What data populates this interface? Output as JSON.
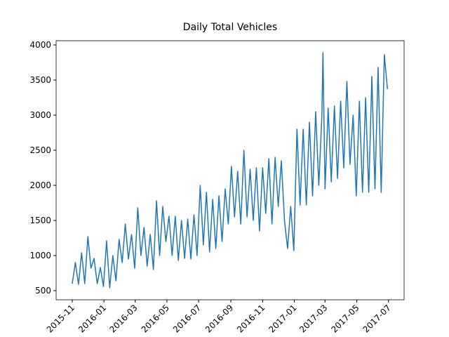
{
  "chart_data": {
    "type": "line",
    "title": "Daily Total Vehicles",
    "color": "#1f77b4",
    "x": [
      "2015-11-01",
      "2015-11-07",
      "2015-11-13",
      "2015-11-19",
      "2015-11-25",
      "2015-12-01",
      "2015-12-07",
      "2015-12-13",
      "2015-12-19",
      "2015-12-25",
      "2015-12-31",
      "2016-01-06",
      "2016-01-12",
      "2016-01-18",
      "2016-01-24",
      "2016-01-30",
      "2016-02-05",
      "2016-02-11",
      "2016-02-17",
      "2016-02-23",
      "2016-02-29",
      "2016-03-06",
      "2016-03-12",
      "2016-03-18",
      "2016-03-24",
      "2016-03-30",
      "2016-04-05",
      "2016-04-11",
      "2016-04-17",
      "2016-04-23",
      "2016-04-29",
      "2016-05-05",
      "2016-05-11",
      "2016-05-17",
      "2016-05-23",
      "2016-05-29",
      "2016-06-04",
      "2016-06-10",
      "2016-06-16",
      "2016-06-22",
      "2016-06-28",
      "2016-07-04",
      "2016-07-10",
      "2016-07-16",
      "2016-07-22",
      "2016-07-28",
      "2016-08-03",
      "2016-08-09",
      "2016-08-15",
      "2016-08-21",
      "2016-08-27",
      "2016-09-02",
      "2016-09-08",
      "2016-09-14",
      "2016-09-20",
      "2016-09-26",
      "2016-10-02",
      "2016-10-08",
      "2016-10-14",
      "2016-10-20",
      "2016-10-26",
      "2016-11-01",
      "2016-11-07",
      "2016-11-13",
      "2016-11-19",
      "2016-11-25",
      "2016-12-01",
      "2016-12-07",
      "2016-12-13",
      "2016-12-19",
      "2016-12-25",
      "2016-12-31",
      "2017-01-06",
      "2017-01-12",
      "2017-01-18",
      "2017-01-24",
      "2017-01-30",
      "2017-02-05",
      "2017-02-11",
      "2017-02-17",
      "2017-02-23",
      "2017-02-25",
      "2017-03-01",
      "2017-03-07",
      "2017-03-13",
      "2017-03-19",
      "2017-03-25",
      "2017-03-31",
      "2017-04-06",
      "2017-04-12",
      "2017-04-18",
      "2017-04-24",
      "2017-04-30",
      "2017-05-06",
      "2017-05-12",
      "2017-05-18",
      "2017-05-24",
      "2017-05-30",
      "2017-06-05",
      "2017-06-11",
      "2017-06-17",
      "2017-06-23",
      "2017-06-29"
    ],
    "values": [
      600,
      900,
      590,
      1040,
      600,
      1270,
      820,
      960,
      600,
      830,
      560,
      1210,
      540,
      1000,
      640,
      1230,
      900,
      1450,
      950,
      1300,
      820,
      1680,
      1000,
      1400,
      850,
      1300,
      800,
      1780,
      1000,
      1700,
      1200,
      1560,
      1000,
      1560,
      930,
      1500,
      960,
      1520,
      950,
      1580,
      1000,
      2000,
      1150,
      1900,
      1050,
      1800,
      1100,
      1850,
      1200,
      1950,
      1450,
      2270,
      1550,
      2200,
      1450,
      2500,
      1550,
      2230,
      1500,
      2250,
      1350,
      2250,
      1600,
      2380,
      1450,
      2400,
      1700,
      2350,
      1500,
      1100,
      1700,
      1070,
      2800,
      1720,
      2800,
      1720,
      2900,
      1850,
      3050,
      2000,
      3000,
      3890,
      1950,
      3100,
      2050,
      3130,
      2100,
      3200,
      2250,
      3480,
      2300,
      3000,
      1850,
      3200,
      1900,
      3250,
      1900,
      3550,
      1950,
      3680,
      1900,
      3860,
      3370
    ],
    "xlim": [
      "2015-10-01",
      "2017-07-31"
    ],
    "xticks": [
      {
        "value": "2015-11-01",
        "label": "2015-11"
      },
      {
        "value": "2016-01-01",
        "label": "2016-01"
      },
      {
        "value": "2016-03-01",
        "label": "2016-03"
      },
      {
        "value": "2016-05-01",
        "label": "2016-05"
      },
      {
        "value": "2016-07-01",
        "label": "2016-07"
      },
      {
        "value": "2016-09-01",
        "label": "2016-09"
      },
      {
        "value": "2016-11-01",
        "label": "2016-11"
      },
      {
        "value": "2017-01-01",
        "label": "2017-01"
      },
      {
        "value": "2017-03-01",
        "label": "2017-03"
      },
      {
        "value": "2017-05-01",
        "label": "2017-05"
      },
      {
        "value": "2017-07-01",
        "label": "2017-07"
      }
    ],
    "ylim": [
      370,
      4060
    ],
    "yticks": [
      500,
      1000,
      1500,
      2000,
      2500,
      3000,
      3500,
      4000
    ]
  }
}
